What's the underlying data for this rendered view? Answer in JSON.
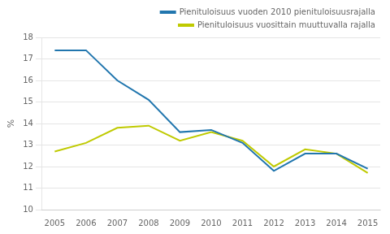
{
  "chart_data": {
    "type": "line",
    "y_label": "%",
    "x": [
      2005,
      2006,
      2007,
      2008,
      2009,
      2010,
      2011,
      2012,
      2013,
      2014,
      2015
    ],
    "series": [
      {
        "name": "Pienituloisuus vuoden 2010 pienituloisuusrajalla",
        "color": "#2176AE",
        "values": [
          17.4,
          17.4,
          16.0,
          15.1,
          13.6,
          13.7,
          13.1,
          11.8,
          12.6,
          12.6,
          11.9
        ]
      },
      {
        "name": "Pienituloisuus vuosittain muuttuvalla rajalla",
        "color": "#BFCA00",
        "values": [
          12.7,
          13.1,
          13.8,
          13.9,
          13.2,
          13.6,
          13.2,
          12.0,
          12.8,
          12.6,
          11.7
        ]
      }
    ],
    "xlim": [
      2004.6,
      2015.4
    ],
    "xticks": [
      2005,
      2006,
      2007,
      2008,
      2009,
      2010,
      2011,
      2012,
      2013,
      2014,
      2015
    ],
    "ylim": [
      10,
      18
    ],
    "yticks": [
      10,
      11,
      12,
      13,
      14,
      15,
      16,
      17,
      18
    ],
    "grid": "y",
    "legend": "upper right"
  }
}
